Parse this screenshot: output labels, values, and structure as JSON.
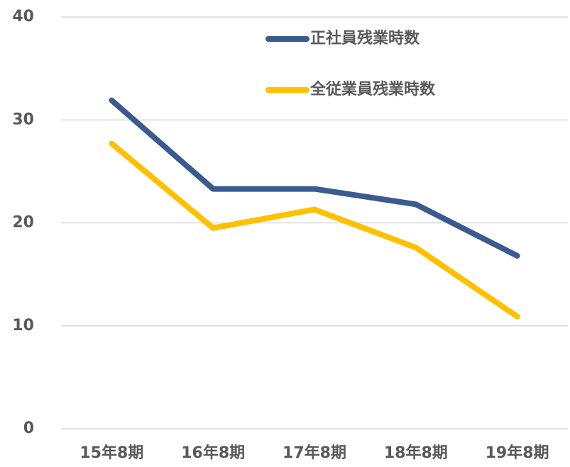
{
  "chart_data": {
    "type": "line",
    "categories": [
      "15年8期",
      "16年8期",
      "17年8期",
      "18年8期",
      "19年8期"
    ],
    "series": [
      {
        "name": "正社員残業時数",
        "color": "#3b5b8e",
        "values": [
          31.9,
          23.3,
          23.3,
          21.8,
          16.8
        ]
      },
      {
        "name": "全従業員残業時数",
        "color": "#ffc000",
        "values": [
          27.7,
          19.5,
          21.3,
          17.6,
          10.9
        ]
      }
    ],
    "ylim": [
      0,
      40
    ],
    "yticks": [
      0,
      10,
      20,
      30,
      40
    ],
    "grid": true,
    "legend": "top-right"
  }
}
